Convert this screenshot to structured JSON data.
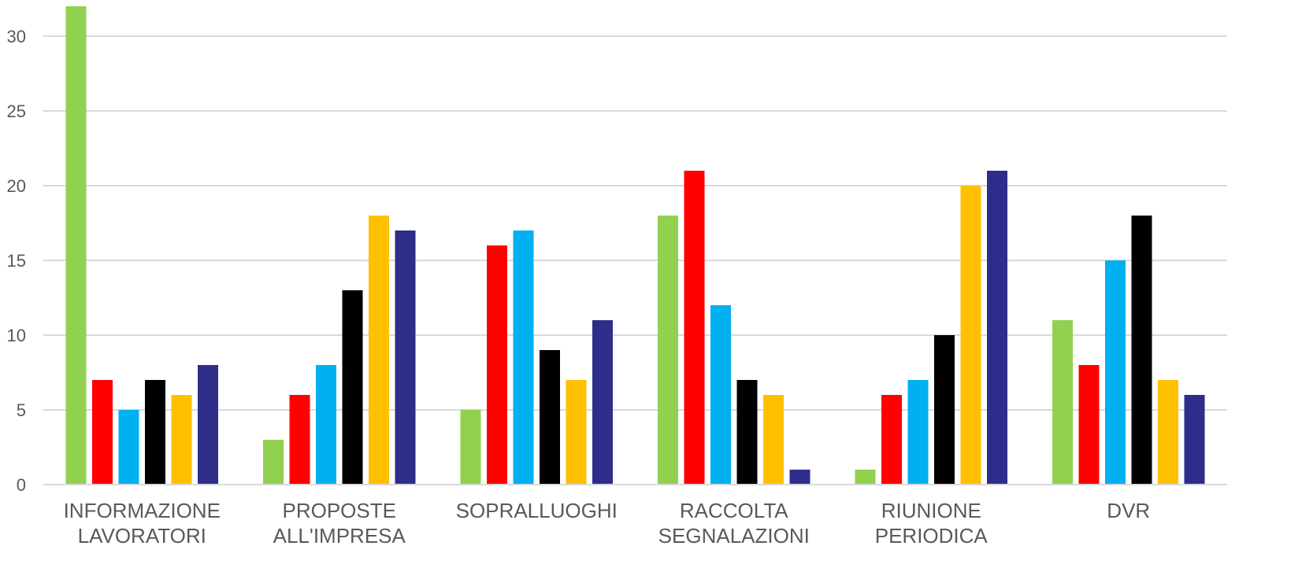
{
  "chart_data": {
    "type": "bar",
    "categories": [
      [
        "INFORMAZIONE",
        "LAVORATORI"
      ],
      [
        "PROPOSTE",
        "ALL'IMPRESA"
      ],
      [
        "SOPRALLUOGHI"
      ],
      [
        "RACCOLTA",
        "SEGNALAZIONI"
      ],
      [
        "RIUNIONE",
        "PERIODICA"
      ],
      [
        "DVR"
      ]
    ],
    "series": [
      {
        "color": "#92d050",
        "values": [
          32,
          3,
          5,
          18,
          1,
          11
        ]
      },
      {
        "color": "#ff0000",
        "values": [
          7,
          6,
          16,
          21,
          6,
          8
        ]
      },
      {
        "color": "#00b0f0",
        "values": [
          5,
          8,
          17,
          12,
          7,
          15
        ]
      },
      {
        "color": "#000000",
        "values": [
          7,
          13,
          9,
          7,
          10,
          18
        ]
      },
      {
        "color": "#ffc000",
        "values": [
          6,
          18,
          7,
          6,
          20,
          7
        ]
      },
      {
        "color": "#2e2e8a",
        "values": [
          8,
          17,
          11,
          1,
          21,
          6
        ]
      }
    ],
    "yticks": [
      "0",
      "5",
      "10",
      "15",
      "20",
      "25",
      "30"
    ],
    "ylim": [
      0,
      32
    ],
    "grid": true,
    "legend": "none"
  }
}
